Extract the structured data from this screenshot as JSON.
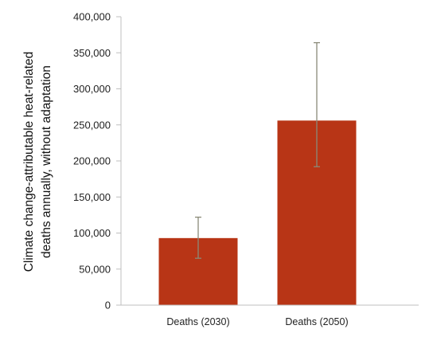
{
  "chart_data": {
    "type": "bar",
    "categories": [
      "Deaths (2030)",
      "Deaths (2050)"
    ],
    "values": [
      93000,
      256000
    ],
    "error_bars": [
      {
        "low": 65000,
        "high": 122000
      },
      {
        "low": 192000,
        "high": 364000
      }
    ],
    "ylabel_lines": [
      "Climate change-attributable heat-related",
      "deaths annually, without adaptation"
    ],
    "ylim": [
      0,
      400000
    ],
    "yticks": [
      0,
      50000,
      100000,
      150000,
      200000,
      250000,
      300000,
      350000,
      400000
    ],
    "ytick_labels": [
      "0",
      "50,000",
      "100,000",
      "150,000",
      "200,000",
      "250,000",
      "300,000",
      "350,000",
      "400,000"
    ],
    "grid": false,
    "legend": "none",
    "colors": {
      "bar": "#b83516",
      "error_bar": "#8a8a78",
      "axis": "#bfbfbf"
    }
  }
}
